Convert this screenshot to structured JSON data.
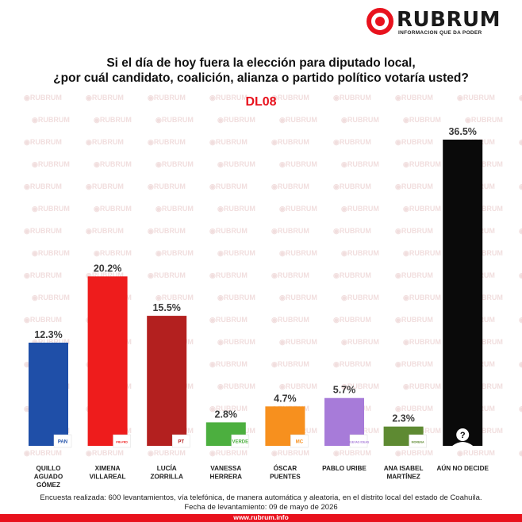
{
  "brand": {
    "name": "RUBRUM",
    "tagline": "INFORMACION QUE DA PODER",
    "url": "www.rubrum.info",
    "accent_color": "#e8121d"
  },
  "title_line1": "Si el día de hoy fuera la elección para diputado local,",
  "title_line2": "¿por cuál candidato, coalición, alianza o partido político votaría usted?",
  "district": "DL08",
  "footnote_line1": "Encuesta realizada: 600 levantamientos, vía telefónica, de manera automática y aleatoria, en el distrito local  del estado de Coahuila.",
  "footnote_line2": "Fecha de levantamiento: 09 de mayo de 2026",
  "chart_data": {
    "type": "bar",
    "title": "DL08",
    "unit": "%",
    "ylim": [
      0,
      36.5
    ],
    "grid": false,
    "categories": [
      [
        "QUILLO",
        "AGUADO",
        "GÓMEZ"
      ],
      [
        "XIMENA",
        "VILLAREAL"
      ],
      [
        "LUCÍA",
        "ZORRILLA"
      ],
      [
        "VANESSA",
        "HERRERA"
      ],
      [
        "ÓSCAR",
        "PUENTES"
      ],
      [
        "PABLO URIBE"
      ],
      [
        "ANA ISABEL",
        "MARTÍNEZ"
      ],
      [
        "AÚN NO DECIDE"
      ]
    ],
    "values": [
      12.3,
      20.2,
      15.5,
      2.8,
      4.7,
      5.7,
      2.3,
      36.5
    ],
    "value_labels": [
      "12.3%",
      "20.2%",
      "15.5%",
      "2.8%",
      "4.7%",
      "5.7%",
      "2.3%",
      "36.5%"
    ],
    "colors": [
      "#1f4fa8",
      "#ee1c1c",
      "#b3201f",
      "#4caf3f",
      "#f7901e",
      "#a77bd9",
      "#5e8a32",
      "#0a0a0a"
    ],
    "party_badges": [
      "PAN",
      "PRI-PRD",
      "PT",
      "VERDE",
      "MC",
      "NUEVAS IDEAS",
      "MORENA",
      "?"
    ]
  }
}
